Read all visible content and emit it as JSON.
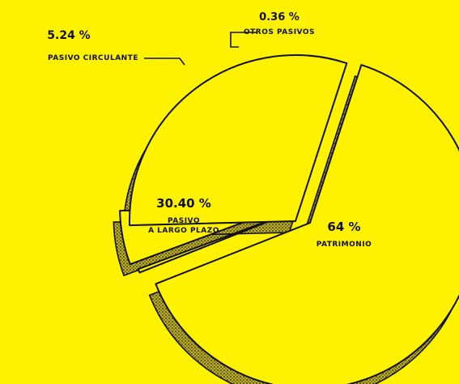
{
  "chart_data": {
    "type": "pie",
    "style": "exploded 3D pie, hand-drawn, black outline on yellow",
    "background_color": "#fff200",
    "ink_color": "#111111",
    "slices": [
      {
        "key": "patrimonio",
        "value": 64,
        "pct_label": "64 %",
        "name_lines": [
          "PATRIMONIO"
        ]
      },
      {
        "key": "otros",
        "value": 0.36,
        "pct_label": "0.36 %",
        "name_lines": [
          "OTROS PASIVOS"
        ]
      },
      {
        "key": "circulante",
        "value": 5.24,
        "pct_label": "5.24 %",
        "name_lines": [
          "PASIVO CIRCULANTE"
        ]
      },
      {
        "key": "largo",
        "value": 30.4,
        "pct_label": "30.40 %",
        "name_lines": [
          "PASIVO",
          "A LARGO PLAZO"
        ]
      }
    ]
  }
}
